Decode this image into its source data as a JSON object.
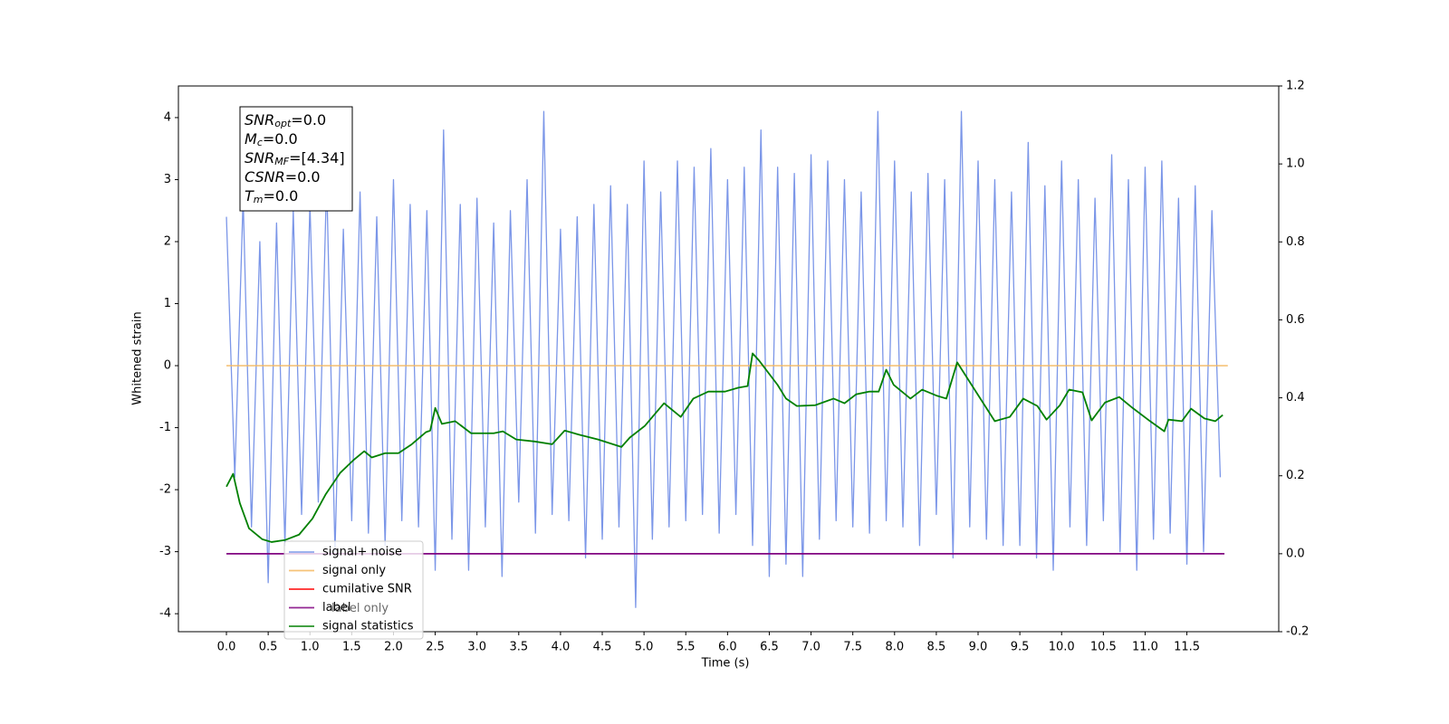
{
  "chart_data": {
    "type": "line",
    "xlabel": "Time (s)",
    "ylabel": "Whitened strain",
    "xlim": [
      -0.575,
      12.6
    ],
    "ylim": [
      -4.29,
      4.51
    ],
    "y2lim": [
      -0.2,
      1.2
    ],
    "xticks": [
      {
        "value": 0,
        "label": "0.0"
      },
      0.5,
      {
        "value": 1,
        "label": "1.0"
      },
      1.5,
      {
        "value": 2,
        "label": "2.0"
      },
      2.5,
      {
        "value": 3,
        "label": "3.0"
      },
      3.5,
      {
        "value": 4,
        "label": "4.0"
      },
      4.5,
      {
        "value": 5,
        "label": "5.0"
      },
      5.5,
      {
        "value": 6,
        "label": "6.0"
      },
      6.5,
      {
        "value": 7,
        "label": "7.0"
      },
      7.5,
      {
        "value": 8,
        "label": "8.0"
      },
      8.5,
      {
        "value": 9,
        "label": "9.0"
      },
      9.5,
      {
        "value": 10,
        "label": "10.0"
      },
      10.5,
      {
        "value": 11,
        "label": "11.0"
      },
      11.5
    ],
    "yticks": [
      4,
      3,
      2,
      1,
      0,
      -1,
      -2,
      -3,
      -4
    ],
    "y2ticks": [
      1.2,
      {
        "value": 1,
        "label": "1.0"
      },
      0.8,
      0.6,
      0.4,
      0.2,
      {
        "value": 0,
        "label": "0.0"
      },
      -0.2
    ],
    "stats_box": [
      {
        "main": "SNR",
        "sub": "opt",
        "rest": "=0.0"
      },
      {
        "main": "M",
        "sub": "c",
        "rest": "=0.0"
      },
      {
        "main": "SNR",
        "sub": "MF",
        "rest": "=[4.34]"
      },
      {
        "main": "CSNR",
        "sub": null,
        "rest": "=0.0"
      },
      {
        "main": "T",
        "sub": "m",
        "rest": "=0.0"
      }
    ],
    "ghost_legend_text": "label only",
    "series": [
      {
        "name": "signal+ noise",
        "color": "#7b96e8",
        "axis": "y",
        "x": [
          0,
          0.1,
          0.2,
          0.3,
          0.4,
          0.5,
          0.6,
          0.7,
          0.8,
          0.9,
          1,
          1.1,
          1.2,
          1.3,
          1.4,
          1.5,
          1.6,
          1.7,
          1.8,
          1.9,
          2,
          2.1,
          2.2,
          2.3,
          2.4,
          2.5,
          2.6,
          2.7,
          2.8,
          2.9,
          3,
          3.1,
          3.2,
          3.3,
          3.4,
          3.5,
          3.6,
          3.7,
          3.8,
          3.9,
          4,
          4.1,
          4.2,
          4.3,
          4.4,
          4.5,
          4.6,
          4.7,
          4.8,
          4.9,
          5,
          5.1,
          5.2,
          5.3,
          5.4,
          5.5,
          5.6,
          5.7,
          5.8,
          5.9,
          6,
          6.1,
          6.2,
          6.3,
          6.4,
          6.5,
          6.6,
          6.7,
          6.8,
          6.9,
          7,
          7.1,
          7.2,
          7.3,
          7.4,
          7.5,
          7.6,
          7.7,
          7.8,
          7.9,
          8,
          8.1,
          8.2,
          8.3,
          8.4,
          8.5,
          8.6,
          8.7,
          8.8,
          8.9,
          9,
          9.1,
          9.2,
          9.3,
          9.4,
          9.5,
          9.6,
          9.7,
          9.8,
          9.9,
          10,
          10.1,
          10.2,
          10.3,
          10.4,
          10.5,
          10.6,
          10.7,
          10.8,
          10.9,
          11,
          11.1,
          11.2,
          11.3,
          11.4,
          11.5,
          11.6,
          11.7,
          11.8,
          11.9
        ],
        "values": [
          2.4,
          -1.8,
          2.7,
          -2.6,
          2.0,
          -3.5,
          2.3,
          -2.9,
          2.5,
          -2.4,
          2.6,
          -2.2,
          3.0,
          -3.0,
          2.2,
          -2.5,
          2.8,
          -2.7,
          2.4,
          -2.9,
          3.0,
          -2.5,
          2.6,
          -2.6,
          2.5,
          -3.3,
          3.8,
          -2.8,
          2.6,
          -3.3,
          2.7,
          -2.6,
          2.3,
          -3.4,
          2.5,
          -2.2,
          3.0,
          -2.7,
          4.1,
          -2.4,
          2.2,
          -2.5,
          2.4,
          -3.1,
          2.6,
          -2.8,
          2.9,
          -2.6,
          2.6,
          -3.9,
          3.3,
          -2.8,
          2.8,
          -2.6,
          3.3,
          -2.5,
          3.2,
          -2.4,
          3.5,
          -2.7,
          3.0,
          -2.4,
          3.2,
          -2.9,
          3.8,
          -3.4,
          3.2,
          -3.2,
          3.1,
          -3.4,
          3.4,
          -2.8,
          3.3,
          -2.5,
          3.0,
          -2.6,
          2.8,
          -2.7,
          4.1,
          -2.5,
          3.3,
          -2.6,
          2.8,
          -2.9,
          3.1,
          -2.4,
          3.0,
          -3.1,
          4.1,
          -2.6,
          3.3,
          -2.8,
          3.0,
          -2.9,
          2.8,
          -2.9,
          3.6,
          -3.1,
          2.9,
          -3.3,
          3.3,
          -2.6,
          3.0,
          -2.9,
          2.7,
          -2.5,
          3.4,
          -3.0,
          3.0,
          -3.3,
          3.2,
          -2.8,
          3.3,
          -2.7,
          2.7,
          -3.2,
          2.9,
          -3.0,
          2.5,
          -1.8
        ]
      },
      {
        "name": "signal only",
        "color": "#f4b860",
        "axis": "y",
        "x": [
          0,
          11.99
        ],
        "values": [
          0,
          0
        ]
      },
      {
        "name": "cumilative SNR",
        "color": "#ff0000",
        "axis": "y2"
      },
      {
        "name": "label",
        "color": "#800080",
        "axis": "y2",
        "x": [
          0,
          11.95
        ],
        "values": [
          0,
          0
        ]
      },
      {
        "name": "signal statistics",
        "color": "#008000",
        "axis": "y2",
        "x": [
          0,
          0.08,
          0.16,
          0.27,
          0.43,
          0.54,
          0.7,
          0.87,
          1.03,
          1.19,
          1.36,
          1.52,
          1.65,
          1.74,
          1.9,
          2.06,
          2.22,
          2.39,
          2.44,
          2.5,
          2.58,
          2.74,
          2.93,
          3.2,
          3.31,
          3.47,
          3.69,
          3.9,
          4.05,
          4.23,
          4.45,
          4.73,
          4.83,
          5.01,
          5.12,
          5.24,
          5.44,
          5.59,
          5.77,
          5.97,
          6.13,
          6.24,
          6.3,
          6.38,
          6.6,
          6.7,
          6.83,
          7.05,
          7.27,
          7.4,
          7.54,
          7.7,
          7.81,
          7.9,
          7.99,
          8.19,
          8.33,
          8.51,
          8.62,
          8.75,
          8.89,
          9.2,
          9.38,
          9.54,
          9.71,
          9.82,
          9.98,
          10.09,
          10.25,
          10.36,
          10.52,
          10.69,
          10.85,
          11.06,
          11.23,
          11.28,
          11.44,
          11.55,
          11.71,
          11.84,
          11.93
        ],
        "values": [
          0.172,
          0.205,
          0.13,
          0.065,
          0.037,
          0.03,
          0.035,
          0.049,
          0.09,
          0.153,
          0.207,
          0.24,
          0.263,
          0.247,
          0.258,
          0.258,
          0.281,
          0.312,
          0.316,
          0.374,
          0.333,
          0.34,
          0.309,
          0.309,
          0.314,
          0.293,
          0.288,
          0.281,
          0.316,
          0.305,
          0.293,
          0.274,
          0.298,
          0.328,
          0.356,
          0.386,
          0.351,
          0.398,
          0.416,
          0.416,
          0.426,
          0.43,
          0.514,
          0.495,
          0.433,
          0.398,
          0.379,
          0.381,
          0.398,
          0.386,
          0.409,
          0.416,
          0.416,
          0.472,
          0.433,
          0.398,
          0.421,
          0.405,
          0.398,
          0.491,
          0.444,
          0.34,
          0.351,
          0.398,
          0.379,
          0.344,
          0.381,
          0.421,
          0.414,
          0.342,
          0.388,
          0.402,
          0.374,
          0.34,
          0.314,
          0.344,
          0.34,
          0.372,
          0.347,
          0.34,
          0.356
        ]
      }
    ]
  }
}
